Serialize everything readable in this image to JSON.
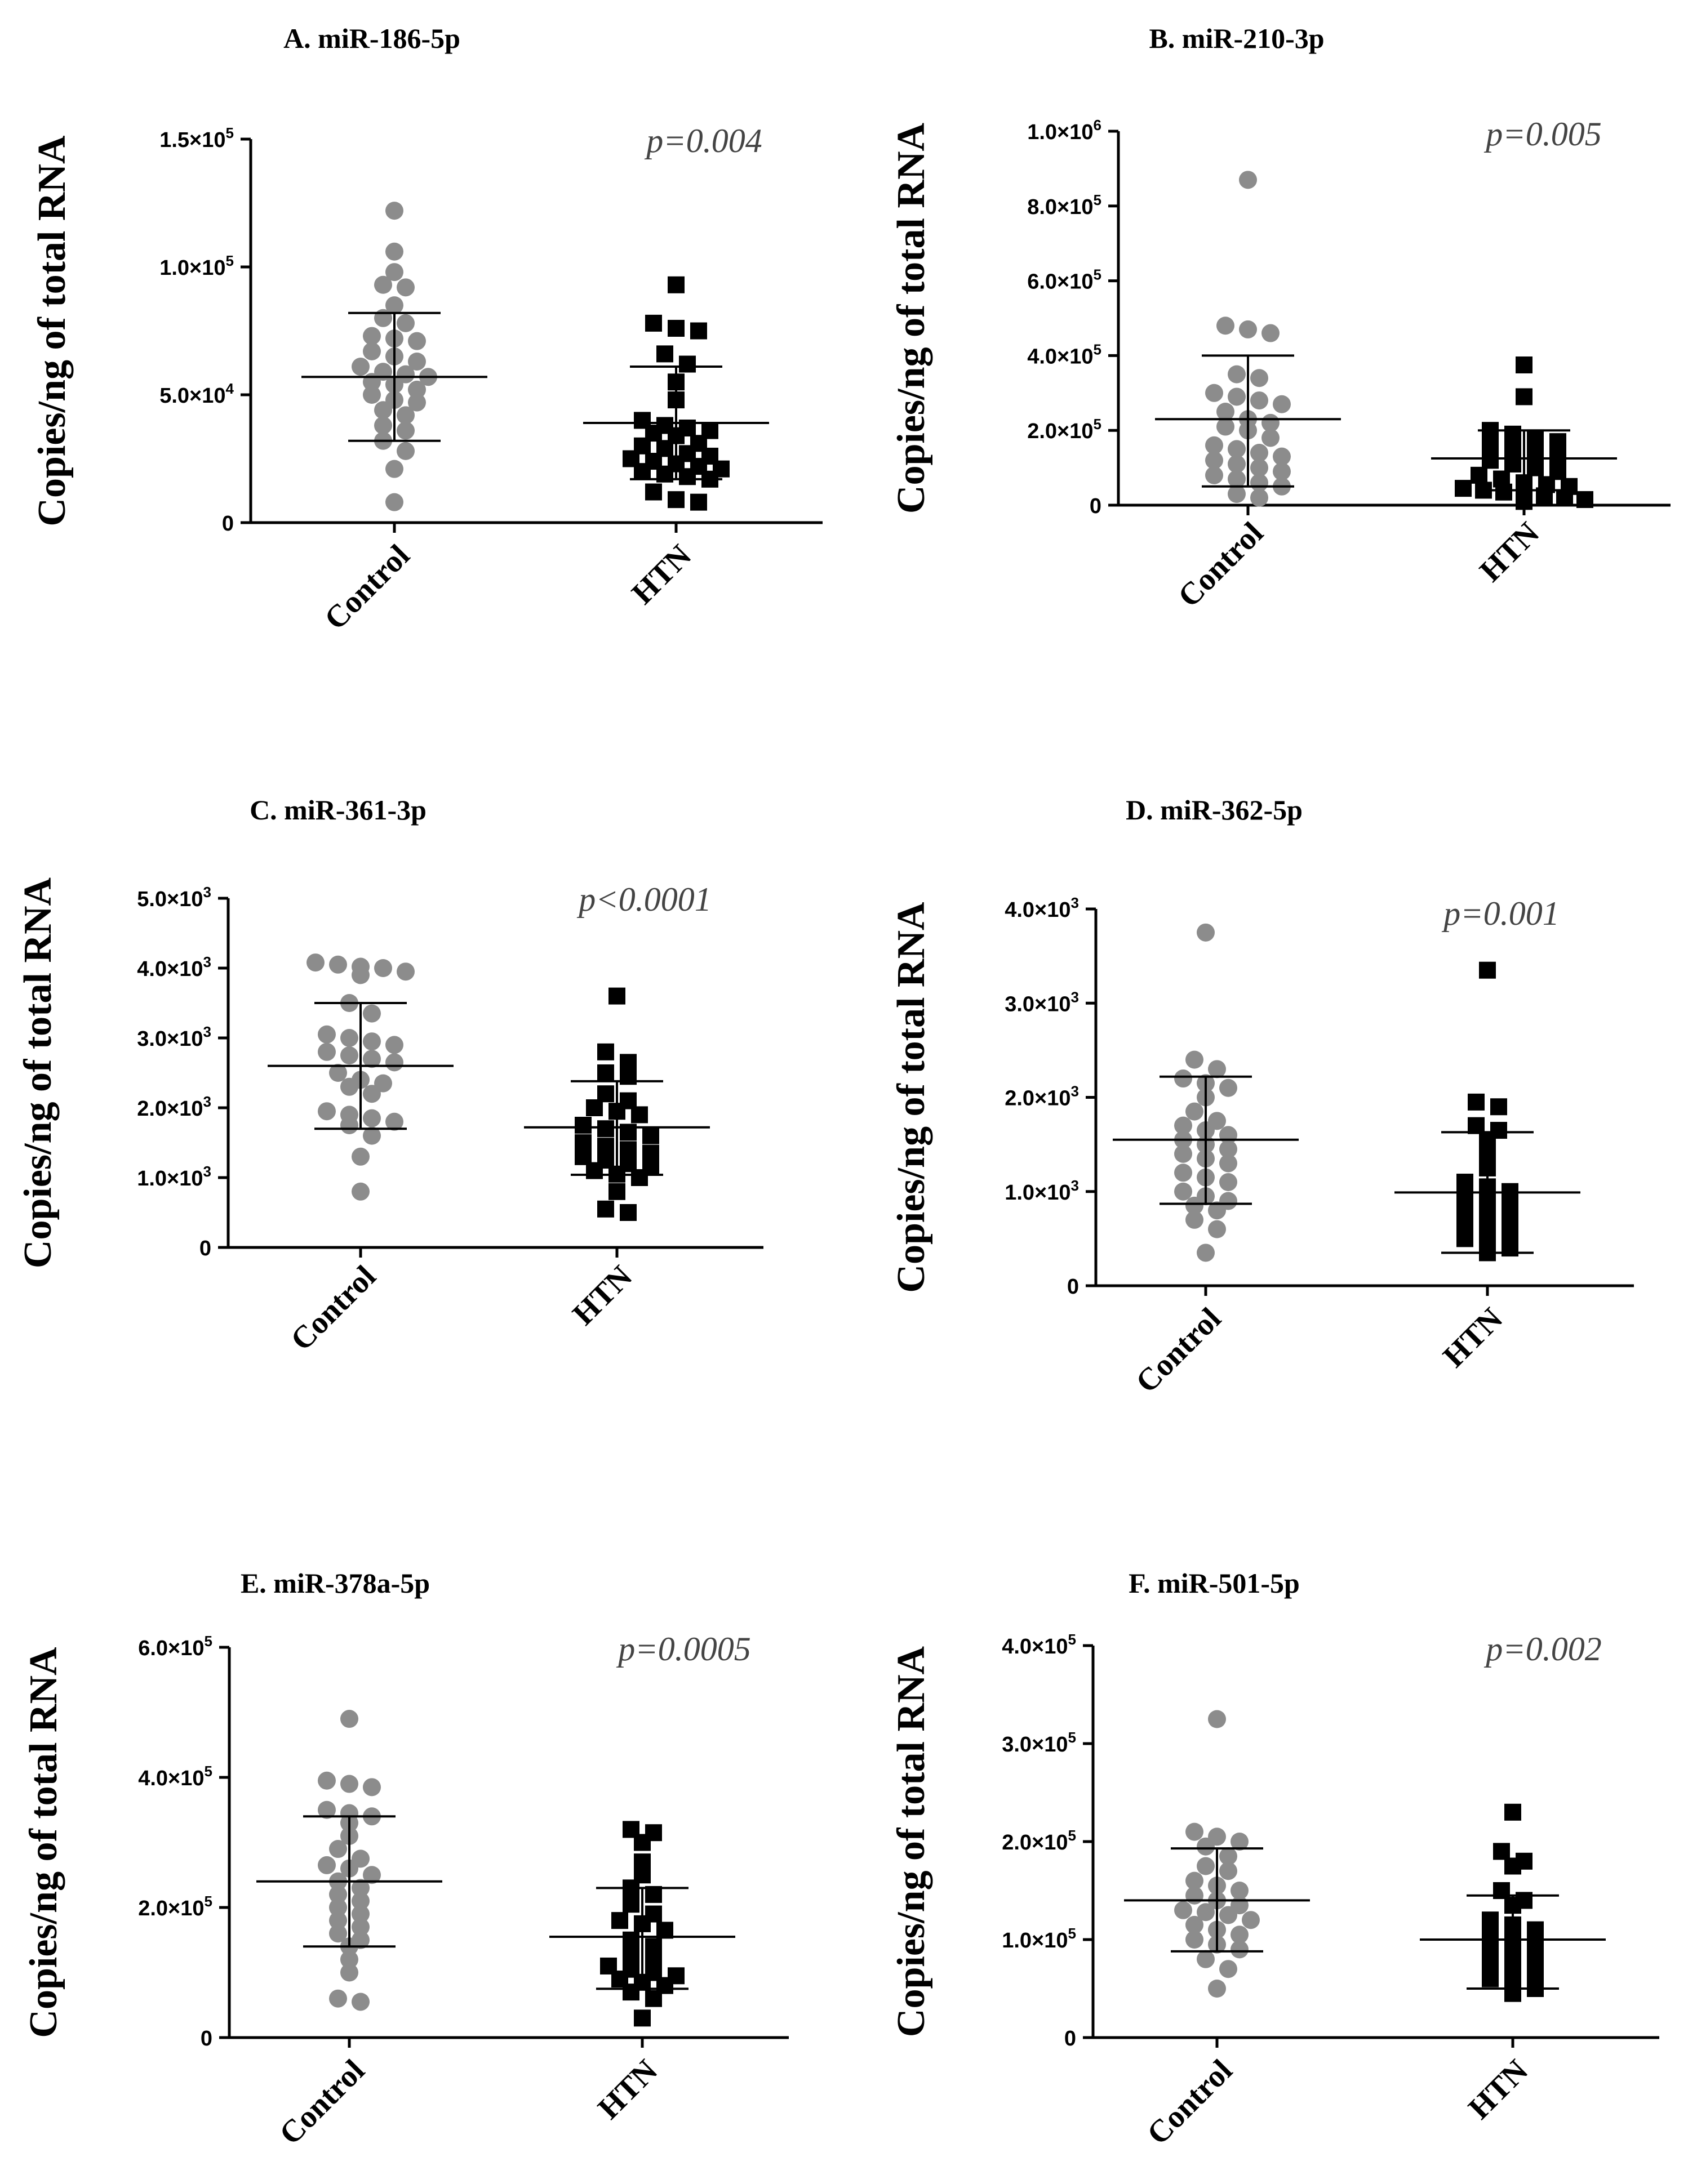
{
  "chart_data": [
    {
      "id": "A",
      "type": "scatter",
      "title": "A. miR-186-5p",
      "ylabel": "Copies/ng of total RNA",
      "categories": [
        "Control",
        "HTN"
      ],
      "ylim": [
        0,
        150000
      ],
      "yticks": [
        {
          "value": 0,
          "mant": "0",
          "exp": ""
        },
        {
          "value": 50000,
          "mant": "5.0×10",
          "exp": "4"
        },
        {
          "value": 100000,
          "mant": "1.0×10",
          "exp": "5"
        },
        {
          "value": 150000,
          "mant": "1.5×10",
          "exp": "5"
        }
      ],
      "pvalue": "p=0.004",
      "series": [
        {
          "name": "Control",
          "marker": "circle",
          "color": "#8c8c8c",
          "mean": 57000,
          "sd_low": 32000,
          "sd_high": 82000,
          "values": [
            122000,
            106000,
            98000,
            93000,
            92000,
            85000,
            80000,
            78000,
            73000,
            72000,
            71000,
            67000,
            65000,
            63000,
            61000,
            59000,
            58000,
            57000,
            55000,
            54000,
            52000,
            50000,
            48000,
            47000,
            44000,
            42000,
            38000,
            36000,
            32000,
            28000,
            21000,
            8000
          ]
        },
        {
          "name": "HTN",
          "marker": "square",
          "color": "#000000",
          "mean": 39000,
          "sd_low": 17000,
          "sd_high": 61000,
          "values": [
            93000,
            78000,
            76000,
            75000,
            66000,
            62000,
            55000,
            48000,
            40000,
            38000,
            37000,
            36000,
            35000,
            34000,
            31000,
            30000,
            29000,
            27000,
            26000,
            25000,
            24000,
            23000,
            22000,
            21000,
            20000,
            19000,
            18000,
            17000,
            12000,
            9000,
            8000
          ]
        }
      ]
    },
    {
      "id": "B",
      "type": "scatter",
      "title": "B. miR-210-3p",
      "ylabel": "Copies/ng of total RNA",
      "categories": [
        "Control",
        "HTN"
      ],
      "ylim": [
        0,
        1000000
      ],
      "yticks": [
        {
          "value": 0,
          "mant": "0",
          "exp": ""
        },
        {
          "value": 200000,
          "mant": "2.0×10",
          "exp": "5"
        },
        {
          "value": 400000,
          "mant": "4.0×10",
          "exp": "5"
        },
        {
          "value": 600000,
          "mant": "6.0×10",
          "exp": "5"
        },
        {
          "value": 800000,
          "mant": "8.0×10",
          "exp": "5"
        },
        {
          "value": 1000000,
          "mant": "1.0×10",
          "exp": "6"
        }
      ],
      "pvalue": "p=0.005",
      "series": [
        {
          "name": "Control",
          "marker": "circle",
          "color": "#8c8c8c",
          "mean": 230000,
          "sd_low": 50000,
          "sd_high": 400000,
          "values": [
            870000,
            480000,
            470000,
            460000,
            350000,
            340000,
            300000,
            290000,
            280000,
            270000,
            250000,
            230000,
            220000,
            210000,
            200000,
            180000,
            160000,
            150000,
            140000,
            130000,
            120000,
            110000,
            100000,
            90000,
            80000,
            70000,
            60000,
            50000,
            30000,
            20000
          ]
        },
        {
          "name": "HTN",
          "marker": "square",
          "color": "#000000",
          "mean": 125000,
          "sd_low": 40000,
          "sd_high": 200000,
          "values": [
            375000,
            290000,
            200000,
            190000,
            180000,
            170000,
            160000,
            150000,
            140000,
            130000,
            120000,
            110000,
            100000,
            90000,
            80000,
            70000,
            60000,
            55000,
            50000,
            45000,
            40000,
            35000,
            30000,
            25000,
            20000,
            15000,
            10000
          ]
        }
      ]
    },
    {
      "id": "C",
      "type": "scatter",
      "title": "C. miR-361-3p",
      "ylabel": "Copies/ng of total RNA",
      "categories": [
        "Control",
        "HTN"
      ],
      "ylim": [
        0,
        5000
      ],
      "yticks": [
        {
          "value": 0,
          "mant": "0",
          "exp": ""
        },
        {
          "value": 1000,
          "mant": "1.0×10",
          "exp": "3"
        },
        {
          "value": 2000,
          "mant": "2.0×10",
          "exp": "3"
        },
        {
          "value": 3000,
          "mant": "3.0×10",
          "exp": "3"
        },
        {
          "value": 4000,
          "mant": "4.0×10",
          "exp": "3"
        },
        {
          "value": 5000,
          "mant": "5.0×10",
          "exp": "3"
        }
      ],
      "pvalue": "p<0.0001",
      "series": [
        {
          "name": "Control",
          "marker": "circle",
          "color": "#8c8c8c",
          "mean": 2600,
          "sd_low": 1700,
          "sd_high": 3500,
          "values": [
            4080,
            4050,
            4020,
            4000,
            3950,
            3900,
            3500,
            3350,
            3050,
            3000,
            2950,
            2900,
            2800,
            2750,
            2700,
            2650,
            2500,
            2400,
            2350,
            2300,
            2200,
            1950,
            1900,
            1850,
            1800,
            1750,
            1600,
            1300,
            800
          ]
        },
        {
          "name": "HTN",
          "marker": "square",
          "color": "#000000",
          "mean": 1720,
          "sd_low": 1040,
          "sd_high": 2380,
          "values": [
            3600,
            2800,
            2650,
            2500,
            2450,
            2200,
            2100,
            2000,
            1950,
            1900,
            1750,
            1700,
            1650,
            1600,
            1500,
            1450,
            1400,
            1350,
            1300,
            1250,
            1200,
            1150,
            1100,
            1050,
            1000,
            800,
            550,
            500
          ]
        }
      ]
    },
    {
      "id": "D",
      "type": "scatter",
      "title": "D. miR-362-5p",
      "ylabel": "Copies/ng of total RNA",
      "categories": [
        "Control",
        "HTN"
      ],
      "ylim": [
        0,
        4000
      ],
      "yticks": [
        {
          "value": 0,
          "mant": "0",
          "exp": ""
        },
        {
          "value": 1000,
          "mant": "1.0×10",
          "exp": "3"
        },
        {
          "value": 2000,
          "mant": "2.0×10",
          "exp": "3"
        },
        {
          "value": 3000,
          "mant": "3.0×10",
          "exp": "3"
        },
        {
          "value": 4000,
          "mant": "4.0×10",
          "exp": "3"
        }
      ],
      "pvalue": "p=0.001",
      "series": [
        {
          "name": "Control",
          "marker": "circle",
          "color": "#8c8c8c",
          "mean": 1550,
          "sd_low": 870,
          "sd_high": 2220,
          "values": [
            3750,
            2400,
            2300,
            2200,
            2150,
            2100,
            2000,
            1850,
            1750,
            1700,
            1650,
            1600,
            1550,
            1500,
            1450,
            1400,
            1350,
            1300,
            1200,
            1150,
            1100,
            1000,
            950,
            900,
            850,
            800,
            700,
            600,
            350
          ]
        },
        {
          "name": "HTN",
          "marker": "square",
          "color": "#000000",
          "mean": 990,
          "sd_low": 350,
          "sd_high": 1630,
          "values": [
            3350,
            1950,
            1900,
            1700,
            1650,
            1550,
            1400,
            1250,
            1100,
            1050,
            1000,
            950,
            900,
            850,
            800,
            750,
            700,
            650,
            600,
            550,
            500,
            450,
            400,
            350
          ]
        }
      ]
    },
    {
      "id": "E",
      "type": "scatter",
      "title": "E. miR-378a-5p",
      "ylabel": "Copies/ng of total RNA",
      "categories": [
        "Control",
        "HTN"
      ],
      "ylim": [
        0,
        600000
      ],
      "yticks": [
        {
          "value": 0,
          "mant": "0",
          "exp": ""
        },
        {
          "value": 200000,
          "mant": "2.0×10",
          "exp": "5"
        },
        {
          "value": 400000,
          "mant": "4.0×10",
          "exp": "5"
        },
        {
          "value": 600000,
          "mant": "6.0×10",
          "exp": "5"
        }
      ],
      "pvalue": "p=0.0005",
      "series": [
        {
          "name": "Control",
          "marker": "circle",
          "color": "#8c8c8c",
          "mean": 240000,
          "sd_low": 140000,
          "sd_high": 340000,
          "values": [
            490000,
            395000,
            390000,
            385000,
            350000,
            345000,
            340000,
            330000,
            310000,
            290000,
            275000,
            265000,
            260000,
            250000,
            240000,
            230000,
            220000,
            210000,
            200000,
            190000,
            180000,
            170000,
            160000,
            150000,
            140000,
            120000,
            100000,
            60000,
            55000
          ]
        },
        {
          "name": "HTN",
          "marker": "square",
          "color": "#000000",
          "mean": 155000,
          "sd_low": 75000,
          "sd_high": 230000,
          "values": [
            320000,
            315000,
            300000,
            270000,
            250000,
            230000,
            220000,
            205000,
            190000,
            180000,
            175000,
            165000,
            150000,
            140000,
            130000,
            120000,
            110000,
            105000,
            100000,
            95000,
            90000,
            85000,
            80000,
            70000,
            60000,
            30000
          ]
        }
      ]
    },
    {
      "id": "F",
      "type": "scatter",
      "title": "F. miR-501-5p",
      "ylabel": "Copies/ng of total RNA",
      "categories": [
        "Control",
        "HTN"
      ],
      "ylim": [
        0,
        400000
      ],
      "yticks": [
        {
          "value": 0,
          "mant": "0",
          "exp": ""
        },
        {
          "value": 100000,
          "mant": "1.0×10",
          "exp": "5"
        },
        {
          "value": 200000,
          "mant": "2.0×10",
          "exp": "5"
        },
        {
          "value": 300000,
          "mant": "3.0×10",
          "exp": "5"
        },
        {
          "value": 400000,
          "mant": "4.0×10",
          "exp": "5"
        }
      ],
      "pvalue": "p=0.002",
      "series": [
        {
          "name": "Control",
          "marker": "circle",
          "color": "#8c8c8c",
          "mean": 140000,
          "sd_low": 88000,
          "sd_high": 193000,
          "values": [
            325000,
            210000,
            205000,
            200000,
            195000,
            185000,
            175000,
            170000,
            160000,
            155000,
            150000,
            145000,
            140000,
            135000,
            130000,
            128000,
            125000,
            120000,
            115000,
            110000,
            105000,
            100000,
            95000,
            90000,
            80000,
            70000,
            50000
          ]
        },
        {
          "name": "HTN",
          "marker": "square",
          "color": "#000000",
          "mean": 100000,
          "sd_low": 50000,
          "sd_high": 145000,
          "values": [
            230000,
            190000,
            180000,
            175000,
            150000,
            140000,
            135000,
            120000,
            115000,
            110000,
            105000,
            100000,
            95000,
            90000,
            85000,
            80000,
            75000,
            70000,
            65000,
            60000,
            55000,
            50000,
            45000
          ]
        }
      ]
    }
  ]
}
